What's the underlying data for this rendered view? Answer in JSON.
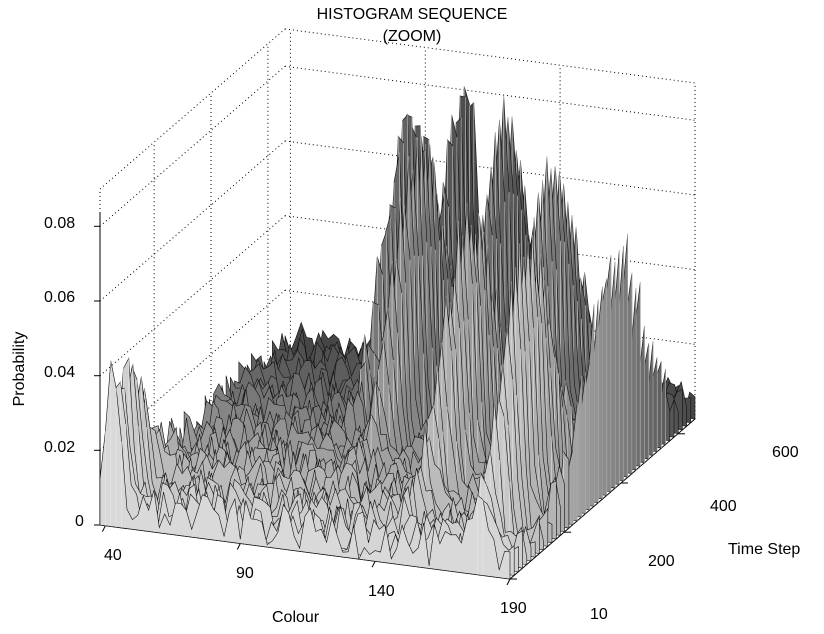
{
  "chart_data": {
    "type": "surface",
    "title": "HISTOGRAM SEQUENCE",
    "subtitle": "(ZOOM)",
    "xlabel": "Colour",
    "ylabel": "Time Step",
    "zlabel": "Probability",
    "x_ticks": [
      "40",
      "90",
      "140",
      "190"
    ],
    "y_ticks": [
      "10",
      "200",
      "400",
      "600"
    ],
    "z_ticks": [
      "0",
      "0.02",
      "0.04",
      "0.06",
      "0.08"
    ],
    "xlim": [
      38,
      190
    ],
    "ylim": [
      10,
      660
    ],
    "zlim": [
      0,
      0.09
    ],
    "grid": true,
    "colormap": "gray",
    "peaks": [
      {
        "colour": 43,
        "time_step": 20,
        "probability": 0.038
      },
      {
        "colour": 95,
        "time_step": 560,
        "probability": 0.079
      },
      {
        "colour": 107,
        "time_step": 640,
        "probability": 0.08
      },
      {
        "colour": 112,
        "time_step": 430,
        "probability": 0.077
      },
      {
        "colour": 130,
        "time_step": 550,
        "probability": 0.076
      },
      {
        "colour": 146,
        "time_step": 280,
        "probability": 0.07
      },
      {
        "colour": 160,
        "time_step": 440,
        "probability": 0.073
      },
      {
        "colour": 178,
        "time_step": 180,
        "probability": 0.07
      },
      {
        "colour": 190,
        "time_step": 380,
        "probability": 0.06
      }
    ],
    "background_noise_max": 0.012
  }
}
